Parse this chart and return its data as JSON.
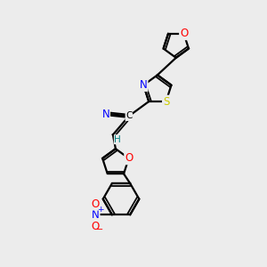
{
  "bg_color": "#ececec",
  "bond_color": "#000000",
  "bond_width": 1.6,
  "atom_colors": {
    "O": "#ff0000",
    "N": "#0000ff",
    "S": "#cccc00",
    "C": "#000000",
    "H": "#008080"
  },
  "font_size": 8.5,
  "fig_size": [
    3.0,
    3.0
  ],
  "dpi": 100
}
